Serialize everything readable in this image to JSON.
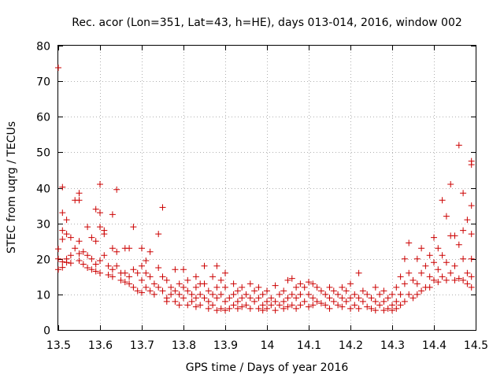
{
  "chart_data": {
    "type": "scatter",
    "title": "Rec. acor (Lon=351, Lat=43, h=HE), days 013-014, 2016, window 002",
    "xlabel": "GPS time / Days of year 2016",
    "ylabel": "STEC from uqrg / TECUs",
    "xlim": [
      13.5,
      14.5
    ],
    "ylim": [
      0,
      80
    ],
    "xticks": [
      13.5,
      13.6,
      13.7,
      13.8,
      13.9,
      14.0,
      14.1,
      14.2,
      14.3,
      14.4,
      14.5
    ],
    "xtick_labels": [
      "13.5",
      "13.6",
      "13.7",
      "13.8",
      "13.9",
      "14",
      "14.1",
      "14.2",
      "14.3",
      "14.4",
      "14.5"
    ],
    "yticks": [
      0,
      10,
      20,
      30,
      40,
      50,
      60,
      70,
      80
    ],
    "ytick_labels": [
      "0",
      "10",
      "20",
      "30",
      "40",
      "50",
      "60",
      "70",
      "80"
    ],
    "grid": true,
    "marker": "+",
    "color": "#cc0000",
    "points": [
      [
        13.5,
        73.8
      ],
      [
        13.51,
        40.2
      ],
      [
        13.51,
        33
      ],
      [
        13.51,
        28
      ],
      [
        13.51,
        25.5
      ],
      [
        13.5,
        22.8
      ],
      [
        13.5,
        20
      ],
      [
        13.51,
        19.2
      ],
      [
        13.51,
        17.6
      ],
      [
        13.5,
        17
      ],
      [
        13.52,
        31
      ],
      [
        13.52,
        27
      ],
      [
        13.52,
        20
      ],
      [
        13.52,
        19
      ],
      [
        13.53,
        26
      ],
      [
        13.53,
        21
      ],
      [
        13.53,
        18.8
      ],
      [
        13.54,
        36.5
      ],
      [
        13.54,
        23
      ],
      [
        13.55,
        38.5
      ],
      [
        13.55,
        36.5
      ],
      [
        13.55,
        25
      ],
      [
        13.55,
        21.5
      ],
      [
        13.55,
        19.5
      ],
      [
        13.56,
        22
      ],
      [
        13.56,
        18.5
      ],
      [
        13.57,
        29
      ],
      [
        13.57,
        21
      ],
      [
        13.57,
        17.5
      ],
      [
        13.58,
        26
      ],
      [
        13.58,
        20
      ],
      [
        13.58,
        17
      ],
      [
        13.59,
        34
      ],
      [
        13.59,
        25
      ],
      [
        13.59,
        18.5
      ],
      [
        13.59,
        16.5
      ],
      [
        13.6,
        41
      ],
      [
        13.6,
        33
      ],
      [
        13.6,
        29
      ],
      [
        13.6,
        19.5
      ],
      [
        13.6,
        16
      ],
      [
        13.61,
        28
      ],
      [
        13.61,
        27
      ],
      [
        13.61,
        21
      ],
      [
        13.62,
        18
      ],
      [
        13.62,
        15.5
      ],
      [
        13.63,
        32.5
      ],
      [
        13.63,
        23
      ],
      [
        13.63,
        17
      ],
      [
        13.63,
        15
      ],
      [
        13.64,
        39.5
      ],
      [
        13.64,
        22
      ],
      [
        13.64,
        18
      ],
      [
        13.65,
        16
      ],
      [
        13.65,
        14
      ],
      [
        13.66,
        23
      ],
      [
        13.66,
        16
      ],
      [
        13.66,
        13.5
      ],
      [
        13.67,
        23
      ],
      [
        13.67,
        15
      ],
      [
        13.67,
        13
      ],
      [
        13.68,
        29
      ],
      [
        13.68,
        17
      ],
      [
        13.68,
        12
      ],
      [
        13.69,
        16
      ],
      [
        13.69,
        11
      ],
      [
        13.7,
        23
      ],
      [
        13.7,
        18
      ],
      [
        13.7,
        14
      ],
      [
        13.7,
        10.5
      ],
      [
        13.71,
        19.5
      ],
      [
        13.71,
        16
      ],
      [
        13.71,
        12
      ],
      [
        13.72,
        22
      ],
      [
        13.72,
        15
      ],
      [
        13.72,
        11
      ],
      [
        13.73,
        13
      ],
      [
        13.73,
        10
      ],
      [
        13.74,
        27
      ],
      [
        13.74,
        17.5
      ],
      [
        13.74,
        12
      ],
      [
        13.75,
        34.5
      ],
      [
        13.75,
        15
      ],
      [
        13.75,
        11
      ],
      [
        13.76,
        14
      ],
      [
        13.76,
        9
      ],
      [
        13.76,
        8
      ],
      [
        13.77,
        12
      ],
      [
        13.77,
        10
      ],
      [
        13.78,
        17
      ],
      [
        13.78,
        11
      ],
      [
        13.78,
        8
      ],
      [
        13.79,
        13
      ],
      [
        13.79,
        10
      ],
      [
        13.79,
        7
      ],
      [
        13.8,
        17
      ],
      [
        13.8,
        12
      ],
      [
        13.8,
        9
      ],
      [
        13.81,
        14
      ],
      [
        13.81,
        11
      ],
      [
        13.81,
        7
      ],
      [
        13.82,
        10
      ],
      [
        13.82,
        8
      ],
      [
        13.83,
        15
      ],
      [
        13.83,
        12
      ],
      [
        13.83,
        9
      ],
      [
        13.83,
        6.5
      ],
      [
        13.84,
        13
      ],
      [
        13.84,
        10
      ],
      [
        13.84,
        7
      ],
      [
        13.85,
        18
      ],
      [
        13.85,
        13
      ],
      [
        13.85,
        9
      ],
      [
        13.86,
        11
      ],
      [
        13.86,
        8
      ],
      [
        13.86,
        6
      ],
      [
        13.87,
        15
      ],
      [
        13.87,
        10
      ],
      [
        13.87,
        7
      ],
      [
        13.88,
        18
      ],
      [
        13.88,
        12
      ],
      [
        13.88,
        9
      ],
      [
        13.88,
        5.5
      ],
      [
        13.89,
        14
      ],
      [
        13.89,
        10
      ],
      [
        13.89,
        6
      ],
      [
        13.9,
        16
      ],
      [
        13.9,
        12
      ],
      [
        13.9,
        8
      ],
      [
        13.9,
        5.5
      ],
      [
        13.91,
        9
      ],
      [
        13.91,
        6
      ],
      [
        13.92,
        13
      ],
      [
        13.92,
        10
      ],
      [
        13.92,
        7
      ],
      [
        13.93,
        11
      ],
      [
        13.93,
        8
      ],
      [
        13.93,
        6
      ],
      [
        13.94,
        12
      ],
      [
        13.94,
        9
      ],
      [
        13.94,
        6.5
      ],
      [
        13.95,
        10
      ],
      [
        13.95,
        7
      ],
      [
        13.96,
        13
      ],
      [
        13.96,
        9
      ],
      [
        13.96,
        6
      ],
      [
        13.97,
        11
      ],
      [
        13.97,
        8
      ],
      [
        13.98,
        12
      ],
      [
        13.98,
        9
      ],
      [
        13.98,
        6
      ],
      [
        13.99,
        10
      ],
      [
        13.99,
        7
      ],
      [
        13.99,
        5.5
      ],
      [
        14.0,
        11
      ],
      [
        14.0,
        8
      ],
      [
        14.0,
        6
      ],
      [
        14.01,
        9
      ],
      [
        14.01,
        7
      ],
      [
        14.02,
        12.5
      ],
      [
        14.02,
        8
      ],
      [
        14.02,
        5.5
      ],
      [
        14.03,
        10
      ],
      [
        14.03,
        7
      ],
      [
        14.04,
        11
      ],
      [
        14.04,
        8
      ],
      [
        14.04,
        6
      ],
      [
        14.05,
        14
      ],
      [
        14.05,
        9
      ],
      [
        14.05,
        6.5
      ],
      [
        14.06,
        14.5
      ],
      [
        14.06,
        10
      ],
      [
        14.06,
        7
      ],
      [
        14.07,
        12
      ],
      [
        14.07,
        9
      ],
      [
        14.07,
        6
      ],
      [
        14.08,
        13
      ],
      [
        14.08,
        10
      ],
      [
        14.08,
        7
      ],
      [
        14.09,
        12
      ],
      [
        14.09,
        8
      ],
      [
        14.1,
        13.5
      ],
      [
        14.1,
        10
      ],
      [
        14.1,
        6.5
      ],
      [
        14.11,
        13
      ],
      [
        14.11,
        9
      ],
      [
        14.11,
        7
      ],
      [
        14.12,
        12
      ],
      [
        14.12,
        8
      ],
      [
        14.13,
        11
      ],
      [
        14.13,
        7.5
      ],
      [
        14.14,
        10
      ],
      [
        14.14,
        7
      ],
      [
        14.15,
        12
      ],
      [
        14.15,
        9
      ],
      [
        14.15,
        6
      ],
      [
        14.16,
        11
      ],
      [
        14.16,
        8
      ],
      [
        14.17,
        10
      ],
      [
        14.17,
        7
      ],
      [
        14.18,
        12
      ],
      [
        14.18,
        9
      ],
      [
        14.18,
        6.5
      ],
      [
        14.19,
        11
      ],
      [
        14.19,
        8
      ],
      [
        14.2,
        13
      ],
      [
        14.2,
        9
      ],
      [
        14.2,
        6
      ],
      [
        14.21,
        10
      ],
      [
        14.21,
        7
      ],
      [
        14.22,
        16
      ],
      [
        14.22,
        9
      ],
      [
        14.22,
        6
      ],
      [
        14.23,
        11
      ],
      [
        14.23,
        8
      ],
      [
        14.24,
        10
      ],
      [
        14.24,
        6.5
      ],
      [
        14.25,
        9
      ],
      [
        14.25,
        6
      ],
      [
        14.26,
        12
      ],
      [
        14.26,
        8
      ],
      [
        14.26,
        5.5
      ],
      [
        14.27,
        10
      ],
      [
        14.27,
        7
      ],
      [
        14.28,
        11
      ],
      [
        14.28,
        8
      ],
      [
        14.28,
        5.5
      ],
      [
        14.29,
        9
      ],
      [
        14.29,
        6
      ],
      [
        14.3,
        10
      ],
      [
        14.3,
        7
      ],
      [
        14.3,
        5.5
      ],
      [
        14.31,
        12
      ],
      [
        14.31,
        8
      ],
      [
        14.31,
        6
      ],
      [
        14.32,
        15
      ],
      [
        14.32,
        10
      ],
      [
        14.32,
        7
      ],
      [
        14.33,
        20
      ],
      [
        14.33,
        13
      ],
      [
        14.33,
        8
      ],
      [
        14.34,
        24.5
      ],
      [
        14.34,
        16
      ],
      [
        14.34,
        10
      ],
      [
        14.35,
        14
      ],
      [
        14.35,
        9
      ],
      [
        14.36,
        20
      ],
      [
        14.36,
        13
      ],
      [
        14.36,
        10
      ],
      [
        14.37,
        23
      ],
      [
        14.37,
        16
      ],
      [
        14.37,
        11
      ],
      [
        14.38,
        18
      ],
      [
        14.38,
        12
      ],
      [
        14.39,
        21
      ],
      [
        14.39,
        15
      ],
      [
        14.39,
        12
      ],
      [
        14.4,
        26
      ],
      [
        14.4,
        19
      ],
      [
        14.4,
        14
      ],
      [
        14.41,
        23
      ],
      [
        14.41,
        17
      ],
      [
        14.41,
        13.5
      ],
      [
        14.42,
        36.5
      ],
      [
        14.42,
        21
      ],
      [
        14.42,
        15
      ],
      [
        14.43,
        32
      ],
      [
        14.43,
        19
      ],
      [
        14.43,
        14
      ],
      [
        14.44,
        41
      ],
      [
        14.44,
        26.5
      ],
      [
        14.44,
        16
      ],
      [
        14.45,
        26.5
      ],
      [
        14.45,
        18
      ],
      [
        14.45,
        14
      ],
      [
        14.46,
        52
      ],
      [
        14.46,
        24
      ],
      [
        14.46,
        14.5
      ],
      [
        14.47,
        38.5
      ],
      [
        14.47,
        28
      ],
      [
        14.47,
        20
      ],
      [
        14.47,
        14
      ],
      [
        14.48,
        31
      ],
      [
        14.48,
        16
      ],
      [
        14.48,
        13
      ],
      [
        14.49,
        47.5
      ],
      [
        14.49,
        46.5
      ],
      [
        14.49,
        35
      ],
      [
        14.49,
        27
      ],
      [
        14.49,
        20
      ],
      [
        14.49,
        15
      ],
      [
        14.49,
        12
      ]
    ]
  }
}
